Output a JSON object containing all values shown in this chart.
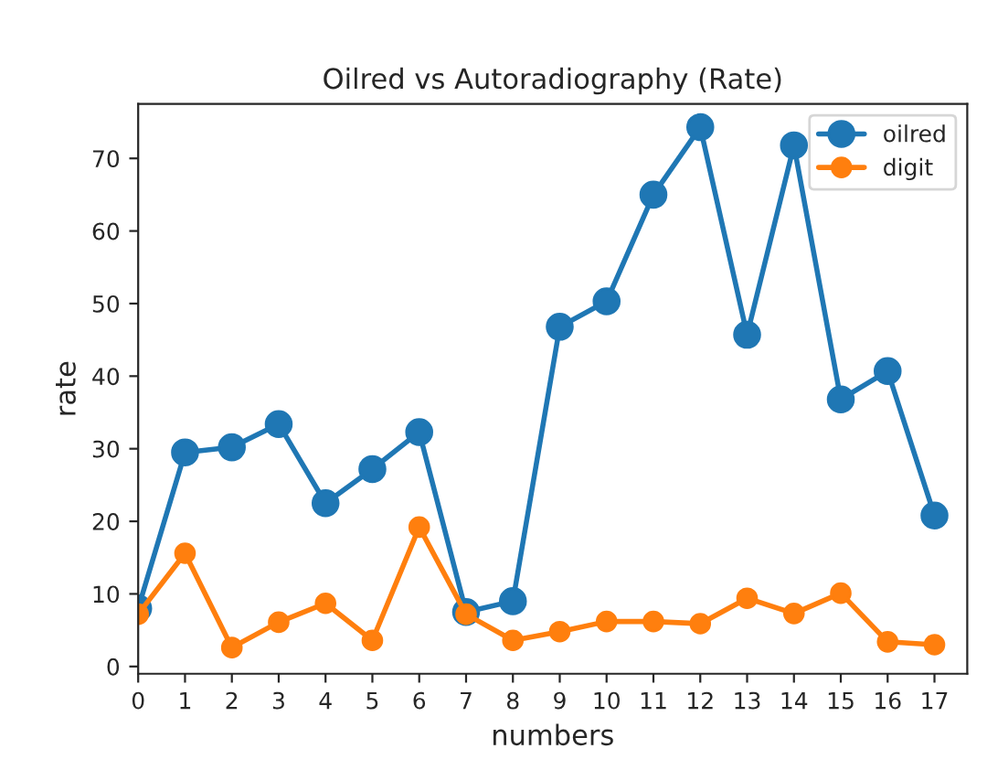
{
  "chart_data": {
    "type": "line",
    "title": "Oilred vs Autoradiography (Rate)",
    "xlabel": "numbers",
    "ylabel": "rate",
    "x": [
      0,
      1,
      2,
      3,
      4,
      5,
      6,
      7,
      8,
      9,
      10,
      11,
      12,
      13,
      14,
      15,
      16,
      17
    ],
    "series": [
      {
        "name": "oilred",
        "color": "#1f77b4",
        "values": [
          8,
          29.5,
          30.2,
          33.4,
          22.5,
          27.2,
          32.3,
          7.5,
          9,
          46.8,
          50.3,
          65,
          74.3,
          45.7,
          71.8,
          36.8,
          40.7,
          20.8
        ]
      },
      {
        "name": "digit",
        "color": "#ff7f0e",
        "values": [
          7.2,
          15.6,
          2.6,
          6.1,
          8.7,
          3.6,
          19.2,
          7.2,
          3.6,
          4.8,
          6.2,
          6.2,
          5.9,
          9.4,
          7.3,
          10.1,
          3.4,
          3.0
        ]
      }
    ],
    "xlim": [
      0,
      17.7
    ],
    "xticks": [
      0,
      1,
      2,
      3,
      4,
      5,
      6,
      7,
      8,
      9,
      10,
      11,
      12,
      13,
      14,
      15,
      16,
      17
    ],
    "ylim": [
      -1,
      77.5
    ],
    "yticks": [
      0,
      10,
      20,
      30,
      40,
      50,
      60,
      70
    ],
    "marker": "circle",
    "line_style": "solid",
    "legend": "top right",
    "grid": false
  }
}
